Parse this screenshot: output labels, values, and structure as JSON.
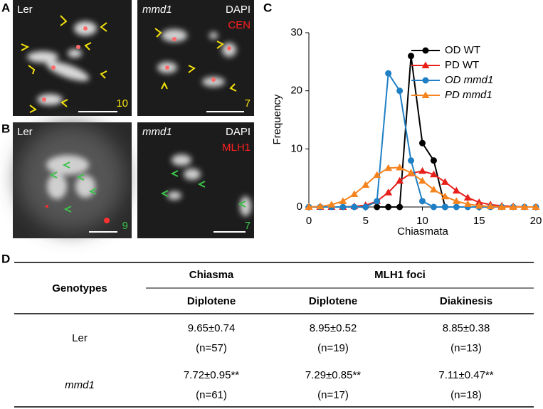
{
  "figure": {
    "panel_labels": [
      "A",
      "B",
      "C",
      "D"
    ],
    "images": [
      {
        "label": "Ler",
        "count": 10
      },
      {
        "label": "mmd1",
        "stains": [
          "DAPI",
          "CEN"
        ],
        "count": 7
      },
      {
        "label": "Ler",
        "count": 9
      },
      {
        "label": "mmd1",
        "stains": [
          "DAPI",
          "MLH1"
        ],
        "count": 7
      }
    ]
  },
  "chart_data": {
    "type": "line",
    "xlabel": "Chiasmata",
    "ylabel": "Frequency",
    "x": [
      0,
      1,
      2,
      3,
      4,
      5,
      6,
      7,
      8,
      9,
      10,
      11,
      12,
      13,
      14,
      15,
      16,
      17,
      18,
      19,
      20
    ],
    "xlim": [
      0,
      20
    ],
    "xticks": [
      0,
      5,
      10,
      15,
      20
    ],
    "ylim": [
      0,
      30
    ],
    "yticks": [
      0,
      10,
      20,
      30
    ],
    "legend": "upper right",
    "series": [
      {
        "name": "OD WT",
        "color": "#000000",
        "marker": "circle",
        "italic": false,
        "values": [
          null,
          null,
          null,
          null,
          null,
          null,
          0,
          0,
          0,
          26,
          11,
          8,
          0,
          null,
          null,
          null,
          null,
          null,
          null,
          null,
          null
        ]
      },
      {
        "name": "PD WT",
        "color": "#e8201c",
        "marker": "triangle",
        "italic": false,
        "values": [
          0,
          0,
          0,
          0,
          0.1,
          0.3,
          1,
          2.5,
          4.5,
          5.8,
          6.2,
          5.6,
          4.3,
          2.8,
          1.6,
          0.8,
          0.4,
          0.2,
          0.1,
          0,
          0
        ]
      },
      {
        "name": "OD mmd1",
        "color": "#1f7fc4",
        "marker": "circle",
        "italic": true,
        "values": [
          0,
          0,
          0,
          0,
          0,
          0,
          1,
          23,
          20,
          8,
          1,
          0,
          0,
          0,
          0,
          0,
          0,
          0,
          0,
          0,
          0
        ]
      },
      {
        "name": "PD mmd1",
        "color": "#f5841f",
        "marker": "triangle",
        "italic": true,
        "values": [
          0,
          0.1,
          0.4,
          1,
          2.2,
          3.8,
          5.5,
          6.7,
          6.8,
          5.9,
          4.5,
          3,
          1.8,
          1,
          0.5,
          0.2,
          0.1,
          0,
          0,
          0,
          0
        ]
      }
    ]
  },
  "table": {
    "header": {
      "genotypes": "Genotypes",
      "groups": [
        "Chiasma",
        "MLH1 foci"
      ],
      "stages": [
        "Diplotene",
        "Diplotene",
        "Diakinesis"
      ]
    },
    "rows": [
      {
        "genotype": "Ler",
        "cells": [
          [
            "9.65±0.74",
            "(n=57)"
          ],
          [
            "8.95±0.52",
            "(n=19)"
          ],
          [
            "8.85±0.38",
            "(n=13)"
          ]
        ]
      },
      {
        "genotype": "mmd1",
        "cells": [
          [
            "7.72±0.95**",
            "(n=61)"
          ],
          [
            "7.29±0.85**",
            "(n=17)"
          ],
          [
            "7.11±0.47**",
            "(n=18)"
          ]
        ]
      }
    ]
  }
}
